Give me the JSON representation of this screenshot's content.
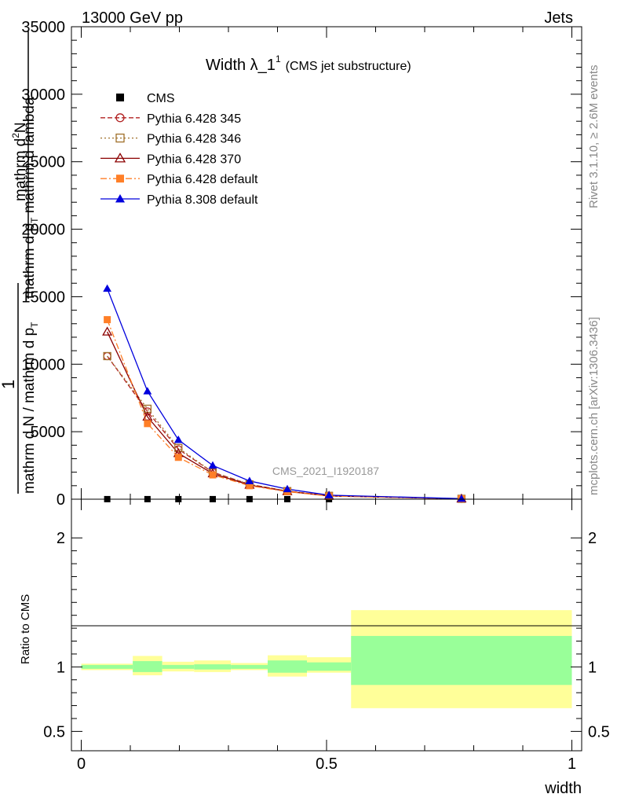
{
  "header": {
    "left": "13000 GeV pp",
    "right": "Jets"
  },
  "side_text": {
    "rivet": "Rivet 3.1.10, ≥ 2.6M events",
    "mcplots": "mcplots.cern.ch [arXiv:1306.3436]"
  },
  "watermark": "CMS_2021_I1920187",
  "title": {
    "main": "Width λ_1",
    "sup": "1",
    "sub": "(CMS jet substructure)"
  },
  "ylabel_main": {
    "num_prefix": "1",
    "den": "mathrm d N / mathrm d p",
    "den_sub": "T",
    "rhs_num": "mathrm d",
    "rhs_num_sup": "2",
    "rhs_num_tail": "N",
    "rhs_den": "mathrm d p",
    "rhs_den_sub": "T",
    "rhs_den_tail": " mathrm d lambda"
  },
  "ylabel_ratio": "Ratio to CMS",
  "xlabel": "width",
  "colors": {
    "band_inner": "#99ff99",
    "band_outer": "#ffff99",
    "cms": "#000000",
    "p345": "#b22222",
    "p346": "#a0702a",
    "p370": "#8b0000",
    "p6def": "#ff7f27",
    "p8def": "#0000dd"
  },
  "chart_data": [
    {
      "type": "line",
      "panel": "main",
      "xlim": [
        -0.02,
        1.02
      ],
      "ylim": [
        0,
        35000
      ],
      "yticks": [
        0,
        5000,
        10000,
        15000,
        20000,
        25000,
        30000,
        35000
      ],
      "ytick_labels": [
        "0",
        "5000",
        "10000",
        "15000",
        "20000",
        "25000",
        "30000",
        "35000"
      ],
      "bin_edges": [
        0,
        0.105,
        0.165,
        0.23,
        0.305,
        0.38,
        0.46,
        0.55,
        1.0
      ],
      "x": [
        0.053,
        0.135,
        0.198,
        0.268,
        0.343,
        0.42,
        0.505,
        0.775
      ],
      "series": [
        {
          "name": "CMS",
          "key": "cms",
          "marker": "square",
          "dash": "none",
          "values": [
            5,
            5,
            5,
            5,
            5,
            5,
            5,
            5
          ]
        },
        {
          "name": "Pythia 6.428 345",
          "key": "p345",
          "marker": "circle-open",
          "dash": "6,3",
          "values": [
            10600,
            6500,
            3700,
            2000,
            1100,
            600,
            250,
            30
          ]
        },
        {
          "name": "Pythia 6.428 346",
          "key": "p346",
          "marker": "square-open",
          "dash": "2,3",
          "values": [
            10600,
            6700,
            3800,
            2000,
            1100,
            600,
            250,
            30
          ]
        },
        {
          "name": "Pythia 6.428 370",
          "key": "p370",
          "marker": "triangle-open",
          "dash": "none",
          "values": [
            12400,
            6100,
            3400,
            1900,
            1050,
            580,
            240,
            30
          ]
        },
        {
          "name": "Pythia 6.428 default",
          "key": "p6def",
          "marker": "square",
          "dash": "8,3,2,3",
          "values": [
            13300,
            5600,
            3100,
            1800,
            1000,
            560,
            230,
            30
          ]
        },
        {
          "name": "Pythia 8.308 default",
          "key": "p8def",
          "marker": "triangle",
          "dash": "none",
          "values": [
            15600,
            8000,
            4400,
            2500,
            1350,
            750,
            300,
            40
          ]
        }
      ]
    },
    {
      "type": "area",
      "panel": "ratio",
      "xlim": [
        -0.02,
        1.02
      ],
      "ylim": [
        0.35,
        2.3
      ],
      "yticks": [
        0.5,
        1,
        2
      ],
      "ytick_labels": [
        "0.5",
        "1",
        "2"
      ],
      "xticks": [
        0,
        0.5,
        1
      ],
      "xtick_labels": [
        "0",
        "0.5",
        "1"
      ],
      "bin_edges": [
        0,
        0.105,
        0.165,
        0.23,
        0.305,
        0.38,
        0.46,
        0.55,
        1.0
      ],
      "inner_band": [
        [
          0.985,
          1.015
        ],
        [
          0.96,
          1.045
        ],
        [
          0.985,
          1.015
        ],
        [
          0.98,
          1.02
        ],
        [
          0.985,
          1.015
        ],
        [
          0.955,
          1.05
        ],
        [
          0.97,
          1.035
        ],
        [
          0.86,
          1.24
        ]
      ],
      "outer_band": [
        [
          0.975,
          1.025
        ],
        [
          0.935,
          1.085
        ],
        [
          0.965,
          1.04
        ],
        [
          0.96,
          1.05
        ],
        [
          0.975,
          1.03
        ],
        [
          0.925,
          1.09
        ],
        [
          0.955,
          1.075
        ],
        [
          0.68,
          1.44
        ]
      ]
    }
  ]
}
